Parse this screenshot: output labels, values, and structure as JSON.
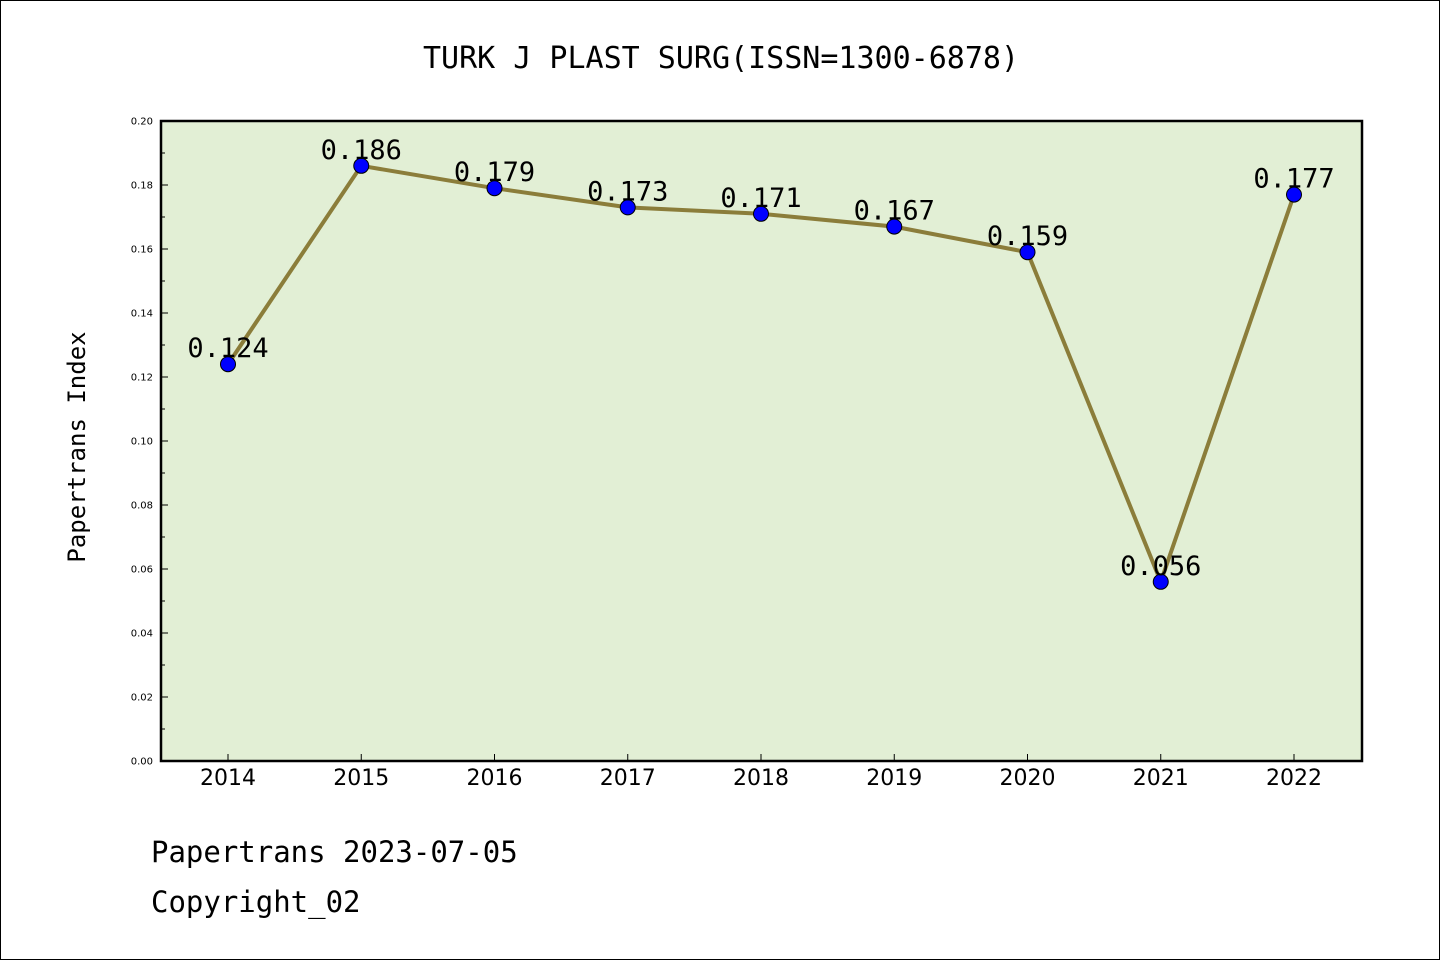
{
  "chart_data": {
    "type": "line",
    "title": "TURK J PLAST SURG(ISSN=1300-6878)",
    "xlabel": "",
    "ylabel": "Papertrans Index",
    "categories": [
      "2014",
      "2015",
      "2016",
      "2017",
      "2018",
      "2019",
      "2020",
      "2021",
      "2022"
    ],
    "values": [
      0.124,
      0.186,
      0.179,
      0.173,
      0.171,
      0.167,
      0.159,
      0.056,
      0.177
    ],
    "data_labels": [
      "0.124",
      "0.186",
      "0.179",
      "0.173",
      "0.171",
      "0.167",
      "0.159",
      "0.056",
      "0.177"
    ],
    "ylim": [
      0,
      0.2
    ],
    "yticks": [
      "0.00",
      "0.02",
      "0.04",
      "0.06",
      "0.08",
      "0.10",
      "0.12",
      "0.14",
      "0.16",
      "0.18",
      "0.20"
    ],
    "grid": false,
    "legend": "none",
    "colors": {
      "line": "#8B7D3A",
      "marker": "#0000FF",
      "plot_background": "#E2EFD5"
    }
  },
  "footer": {
    "line1": "Papertrans 2023-07-05",
    "line2": "Copyright_02"
  }
}
